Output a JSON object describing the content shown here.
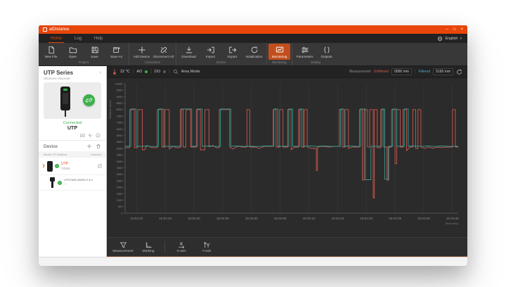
{
  "window": {
    "title": "atDistance",
    "controls": {
      "minimize": "–",
      "maximize": "□",
      "close": "×"
    }
  },
  "menu": {
    "tabs": [
      {
        "label": "Home",
        "active": true
      },
      {
        "label": "Log",
        "active": false
      },
      {
        "label": "Help",
        "active": false
      }
    ],
    "language": "English"
  },
  "toolbar": {
    "groups": [
      {
        "label": "Project",
        "buttons": [
          {
            "label": "New File",
            "icon": "new-file-icon"
          },
          {
            "label": "Open",
            "icon": "open-folder-icon"
          },
          {
            "label": "Save",
            "icon": "save-icon"
          },
          {
            "label": "Save As",
            "icon": "save-as-icon"
          }
        ]
      },
      {
        "label": "Connection",
        "buttons": [
          {
            "label": "Add Device",
            "icon": "add-device-icon"
          },
          {
            "label": "Disconnect All",
            "icon": "disconnect-icon"
          }
        ]
      },
      {
        "label": "Device",
        "buttons": [
          {
            "label": "Download",
            "icon": "download-icon"
          },
          {
            "label": "Import",
            "icon": "import-icon"
          },
          {
            "label": "Export",
            "icon": "export-icon"
          },
          {
            "label": "Initialization",
            "icon": "initialization-icon"
          }
        ]
      },
      {
        "label": "Monitoring",
        "buttons": [
          {
            "label": "Monitoring",
            "icon": "monitoring-icon",
            "active": true
          }
        ]
      },
      {
        "label": "Setting",
        "buttons": [
          {
            "label": "Parameters",
            "icon": "parameters-icon"
          },
          {
            "label": "Outputs",
            "icon": "outputs-icon"
          }
        ]
      }
    ]
  },
  "sidebar": {
    "series_title": "UTP Series",
    "series_subtitle": "Ultrasonic Repeater",
    "connection_status": "Connected",
    "device_name": "UTP",
    "device_panel": {
      "title": "Device",
      "columns": {
        "model": "Model / IP Address",
        "connect": "Connect"
      },
      "rows": [
        {
          "name": "UTP",
          "sub": "COM6"
        },
        {
          "name": "UTRCM30-8VDB-O-IL2",
          "sub": "---"
        }
      ]
    }
  },
  "chart_header": {
    "temperature": "22 ℃",
    "ao_label": "AO",
    "do_label": "DO",
    "mode_label": "Area Mode",
    "measurement_label": "Measurement",
    "unfiltered_label": "Unfiltered",
    "unfiltered_value": "0000 mm",
    "filtered_label": "Filtered",
    "filtered_value": "5165 mm"
  },
  "bottom_toolbar": {
    "buttons": [
      {
        "label": "Measurement",
        "icon": "funnel-icon"
      },
      {
        "label": "Marking",
        "icon": "marking-icon"
      },
      {
        "label": "X-axis",
        "icon": "x-axis-icon"
      },
      {
        "label": "Y-axis",
        "icon": "y-axis-icon"
      }
    ]
  },
  "colors": {
    "accent_orange": "#e8450a",
    "connected_green": "#3db04b",
    "unfiltered_red": "#cd5a52",
    "filtered_teal": "#2fa193",
    "filtered_label_blue": "#4ba6c3"
  },
  "chart_data": {
    "type": "line",
    "title": "",
    "xlabel": "Time (sec)",
    "ylabel": "Distance (mm)",
    "ylim": [
      0,
      10000
    ],
    "ytick_step": 500,
    "t_range": [
      0,
      58
    ],
    "x_ticks_t": [
      2,
      7,
      12,
      17,
      22,
      27,
      32,
      37,
      42,
      47,
      52,
      57
    ],
    "x_tick_labels": [
      "15:02:40",
      "15:02:45",
      "15:02:50",
      "15:02:55",
      "15:03:00",
      "15:03:05",
      "15:03:10",
      "15:03:15",
      "15:03:20",
      "15:03:25",
      "15:03:30",
      "15:03:35"
    ],
    "grid": "vertical",
    "legend_position": "none",
    "series": [
      {
        "name": "Unfiltered",
        "color": "#cd5a52",
        "points": [
          [
            0,
            5060
          ],
          [
            0.8,
            5060
          ],
          [
            0.8,
            8000
          ],
          [
            1.6,
            8000
          ],
          [
            1.6,
            5060
          ],
          [
            2.2,
            5060
          ],
          [
            2.2,
            8000
          ],
          [
            3.0,
            8000
          ],
          [
            3.0,
            4890
          ],
          [
            3.4,
            4890
          ],
          [
            3.8,
            5230
          ],
          [
            4.6,
            5060
          ],
          [
            5.6,
            5060
          ],
          [
            5.6,
            8000
          ],
          [
            6.4,
            8000
          ],
          [
            6.4,
            5110
          ],
          [
            6.9,
            5110
          ],
          [
            6.9,
            8000
          ],
          [
            7.7,
            8000
          ],
          [
            7.7,
            4950
          ],
          [
            8.3,
            5160
          ],
          [
            9.0,
            5060
          ],
          [
            9.6,
            5060
          ],
          [
            9.6,
            8000
          ],
          [
            10.1,
            8000
          ],
          [
            10.1,
            5110
          ],
          [
            10.6,
            5110
          ],
          [
            10.6,
            8000
          ],
          [
            11.4,
            8000
          ],
          [
            11.4,
            5110
          ],
          [
            12.4,
            5110
          ],
          [
            12.4,
            8000
          ],
          [
            13.1,
            8000
          ],
          [
            13.1,
            4890
          ],
          [
            13.6,
            4890
          ],
          [
            13.9,
            4890
          ],
          [
            13.9,
            8000
          ],
          [
            14.6,
            8000
          ],
          [
            14.6,
            5110
          ],
          [
            15.3,
            5230
          ],
          [
            15.9,
            5060
          ],
          [
            16.4,
            5060
          ],
          [
            16.4,
            8000
          ],
          [
            18.2,
            8000
          ],
          [
            18.2,
            5110
          ],
          [
            18.8,
            4950
          ],
          [
            19.6,
            5160
          ],
          [
            20.4,
            5110
          ],
          [
            21.2,
            5110
          ],
          [
            21.2,
            8000
          ],
          [
            21.7,
            8000
          ],
          [
            21.7,
            5110
          ],
          [
            22.6,
            5110
          ],
          [
            23.4,
            5000
          ],
          [
            24.2,
            5160
          ],
          [
            25.8,
            5160
          ],
          [
            25.8,
            8000
          ],
          [
            26.3,
            8000
          ],
          [
            26.3,
            5110
          ],
          [
            26.9,
            5110
          ],
          [
            26.9,
            8000
          ],
          [
            27.5,
            8000
          ],
          [
            27.5,
            5110
          ],
          [
            28.3,
            5110
          ],
          [
            28.3,
            8000
          ],
          [
            28.9,
            8000
          ],
          [
            28.9,
            4890
          ],
          [
            29.5,
            5110
          ],
          [
            30.2,
            5110
          ],
          [
            30.2,
            8000
          ],
          [
            30.7,
            8000
          ],
          [
            30.7,
            5110
          ],
          [
            31.2,
            5110
          ],
          [
            31.2,
            8000
          ],
          [
            31.7,
            8000
          ],
          [
            31.7,
            5110
          ],
          [
            32.4,
            5000
          ],
          [
            33.3,
            5000
          ],
          [
            33.3,
            3300
          ],
          [
            33.5,
            3300
          ],
          [
            33.5,
            5110
          ],
          [
            34.5,
            5160
          ],
          [
            35.5,
            5110
          ],
          [
            36.5,
            5160
          ],
          [
            37.3,
            5160
          ],
          [
            37.3,
            8000
          ],
          [
            37.8,
            8000
          ],
          [
            37.8,
            5110
          ],
          [
            38.3,
            5110
          ],
          [
            38.3,
            8000
          ],
          [
            38.9,
            8000
          ],
          [
            38.9,
            5000
          ],
          [
            39.6,
            5110
          ],
          [
            40.8,
            5110
          ],
          [
            40.8,
            8000
          ],
          [
            41.3,
            8000
          ],
          [
            41.3,
            2550
          ],
          [
            41.6,
            2550
          ],
          [
            41.6,
            8000
          ],
          [
            42.2,
            8000
          ],
          [
            42.2,
            5110
          ],
          [
            42.6,
            5110
          ],
          [
            42.6,
            8000
          ],
          [
            43.2,
            8000
          ],
          [
            43.2,
            1170
          ],
          [
            43.4,
            1170
          ],
          [
            43.4,
            8000
          ],
          [
            43.9,
            8000
          ],
          [
            43.9,
            5060
          ],
          [
            44.5,
            5060
          ],
          [
            44.5,
            8000
          ],
          [
            45.0,
            8000
          ],
          [
            45.0,
            5110
          ],
          [
            45.6,
            5110
          ],
          [
            45.6,
            2550
          ],
          [
            45.9,
            2550
          ],
          [
            45.9,
            5110
          ],
          [
            46.4,
            5110
          ],
          [
            46.4,
            8000
          ],
          [
            47.0,
            8000
          ],
          [
            47.0,
            3820
          ],
          [
            47.3,
            3820
          ],
          [
            47.3,
            8000
          ],
          [
            47.9,
            8000
          ],
          [
            47.9,
            5110
          ],
          [
            48.4,
            5110
          ],
          [
            48.4,
            8000
          ],
          [
            49.0,
            8000
          ],
          [
            49.0,
            4820
          ],
          [
            49.6,
            5110
          ],
          [
            50.1,
            5110
          ],
          [
            50.1,
            8000
          ],
          [
            50.6,
            8000
          ],
          [
            50.6,
            5000
          ],
          [
            51.0,
            5000
          ],
          [
            51.0,
            8000
          ],
          [
            51.5,
            8000
          ],
          [
            51.5,
            5110
          ],
          [
            52.2,
            5000
          ],
          [
            52.9,
            5110
          ],
          [
            53.6,
            5010
          ],
          [
            54.4,
            5110
          ],
          [
            55.2,
            5060
          ],
          [
            56.0,
            5110
          ],
          [
            56.6,
            5110
          ],
          [
            57.0,
            5110
          ],
          [
            57.0,
            8000
          ],
          [
            57.5,
            8000
          ],
          [
            57.5,
            5110
          ],
          [
            58,
            5110
          ]
        ]
      },
      {
        "name": "Filtered",
        "color": "#2fa193",
        "points": [
          [
            0,
            5165
          ],
          [
            1.0,
            5165
          ],
          [
            1.0,
            8050
          ],
          [
            1.9,
            8050
          ],
          [
            1.9,
            5165
          ],
          [
            3.2,
            5165
          ],
          [
            3.6,
            5190
          ],
          [
            4.4,
            5150
          ],
          [
            5.8,
            5150
          ],
          [
            5.8,
            8050
          ],
          [
            6.7,
            8050
          ],
          [
            6.7,
            5165
          ],
          [
            8.0,
            5165
          ],
          [
            9.8,
            5165
          ],
          [
            9.8,
            8050
          ],
          [
            11.6,
            8050
          ],
          [
            11.6,
            5165
          ],
          [
            12.6,
            5165
          ],
          [
            12.6,
            8050
          ],
          [
            13.4,
            8050
          ],
          [
            13.4,
            5165
          ],
          [
            14.8,
            5190
          ],
          [
            15.6,
            5150
          ],
          [
            16.6,
            5150
          ],
          [
            16.6,
            8050
          ],
          [
            18.4,
            8050
          ],
          [
            18.4,
            5165
          ],
          [
            19.4,
            5190
          ],
          [
            20.6,
            5150
          ],
          [
            22.0,
            5165
          ],
          [
            23.2,
            5150
          ],
          [
            24.4,
            5190
          ],
          [
            25.9,
            5190
          ],
          [
            25.9,
            8050
          ],
          [
            26.6,
            8050
          ],
          [
            26.6,
            5165
          ],
          [
            28.5,
            5165
          ],
          [
            28.5,
            8050
          ],
          [
            29.2,
            8050
          ],
          [
            29.2,
            5165
          ],
          [
            30.4,
            5165
          ],
          [
            30.4,
            8050
          ],
          [
            31.0,
            8050
          ],
          [
            31.0,
            5165
          ],
          [
            32.2,
            5190
          ],
          [
            33.4,
            5150
          ],
          [
            34.6,
            5190
          ],
          [
            35.8,
            5150
          ],
          [
            37.5,
            5150
          ],
          [
            37.5,
            8050
          ],
          [
            38.1,
            8050
          ],
          [
            38.1,
            5165
          ],
          [
            39.4,
            5190
          ],
          [
            40.4,
            5150
          ],
          [
            41.0,
            5150
          ],
          [
            41.0,
            8050
          ],
          [
            41.8,
            8050
          ],
          [
            41.8,
            2580
          ],
          [
            42.8,
            2580
          ],
          [
            42.8,
            5165
          ],
          [
            44.0,
            5165
          ],
          [
            44.7,
            5165
          ],
          [
            44.7,
            8050
          ],
          [
            45.2,
            8050
          ],
          [
            45.2,
            2620
          ],
          [
            45.8,
            2620
          ],
          [
            45.8,
            5165
          ],
          [
            46.6,
            5165
          ],
          [
            46.6,
            8050
          ],
          [
            47.3,
            8050
          ],
          [
            47.3,
            5165
          ],
          [
            48.6,
            5165
          ],
          [
            48.6,
            8050
          ],
          [
            49.3,
            8050
          ],
          [
            49.3,
            5165
          ],
          [
            50.4,
            5190
          ],
          [
            51.6,
            5150
          ],
          [
            52.8,
            5190
          ],
          [
            54.0,
            5150
          ],
          [
            55.2,
            5190
          ],
          [
            56.4,
            5150
          ],
          [
            58,
            5165
          ]
        ]
      }
    ]
  }
}
